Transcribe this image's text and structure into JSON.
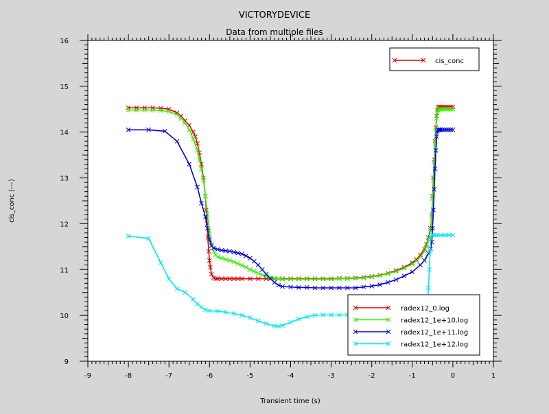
{
  "chart_data": {
    "type": "line",
    "title": "VICTORYDEVICE",
    "subtitle": "Data from multiple files",
    "xlabel": "Transient time (s)",
    "ylabel": "cis_conc (---)",
    "xlim": [
      -9,
      1
    ],
    "ylim": [
      9,
      16
    ],
    "xticks": [
      -9,
      -8,
      -7,
      -6,
      -5,
      -4,
      -3,
      -2,
      -1,
      0,
      1
    ],
    "yticks": [
      9,
      10,
      11,
      12,
      13,
      14,
      15,
      16
    ],
    "grid": false,
    "legend_top": {
      "placement": "top-right",
      "entries": [
        {
          "label": "cis_conc",
          "color": "#e00000"
        }
      ]
    },
    "legend_bottom": {
      "placement": "bottom-right"
    },
    "series": [
      {
        "name": "radex12_0.log",
        "color": "#e00000",
        "x": [
          -8.0,
          -7.8,
          -7.6,
          -7.4,
          -7.2,
          -7.0,
          -6.8,
          -6.7,
          -6.6,
          -6.5,
          -6.4,
          -6.35,
          -6.3,
          -6.25,
          -6.2,
          -6.15,
          -6.1,
          -6.08,
          -6.06,
          -6.04,
          -6.02,
          -6.0,
          -5.98,
          -5.95,
          -5.9,
          -5.85,
          -5.8,
          -5.7,
          -5.6,
          -5.5,
          -5.4,
          -5.3,
          -5.2,
          -5.0,
          -4.8,
          -4.6,
          -4.4,
          -4.2,
          -4.0,
          -3.8,
          -3.6,
          -3.4,
          -3.2,
          -3.0,
          -2.8,
          -2.6,
          -2.4,
          -2.2,
          -2.0,
          -1.8,
          -1.6,
          -1.4,
          -1.2,
          -1.0,
          -0.9,
          -0.8,
          -0.7,
          -0.65,
          -0.6,
          -0.55,
          -0.52,
          -0.5,
          -0.48,
          -0.46,
          -0.44,
          -0.42,
          -0.4,
          -0.38,
          -0.36,
          -0.34,
          -0.32,
          -0.3,
          -0.25,
          -0.2,
          -0.15,
          -0.1,
          -0.05,
          0.0
        ],
        "y": [
          14.53,
          14.53,
          14.53,
          14.53,
          14.52,
          14.5,
          14.42,
          14.35,
          14.25,
          14.15,
          14.0,
          13.9,
          13.75,
          13.55,
          13.3,
          13.0,
          12.6,
          12.3,
          12.0,
          11.7,
          11.4,
          11.2,
          11.05,
          10.9,
          10.82,
          10.8,
          10.8,
          10.8,
          10.8,
          10.8,
          10.8,
          10.8,
          10.8,
          10.8,
          10.8,
          10.8,
          10.8,
          10.8,
          10.8,
          10.8,
          10.8,
          10.8,
          10.8,
          10.8,
          10.81,
          10.81,
          10.82,
          10.83,
          10.85,
          10.88,
          10.92,
          10.98,
          11.05,
          11.15,
          11.22,
          11.32,
          11.45,
          11.55,
          11.7,
          11.9,
          12.2,
          12.6,
          13.0,
          13.4,
          13.8,
          14.1,
          14.35,
          14.48,
          14.53,
          14.55,
          14.55,
          14.55,
          14.55,
          14.55,
          14.55,
          14.55,
          14.55,
          14.55
        ]
      },
      {
        "name": "radex12_1e+10.log",
        "color": "#33ee00",
        "x": [
          -8.0,
          -7.8,
          -7.6,
          -7.4,
          -7.2,
          -7.0,
          -6.8,
          -6.7,
          -6.6,
          -6.5,
          -6.4,
          -6.3,
          -6.25,
          -6.2,
          -6.15,
          -6.1,
          -6.05,
          -6.0,
          -5.95,
          -5.9,
          -5.85,
          -5.8,
          -5.7,
          -5.6,
          -5.5,
          -5.4,
          -5.3,
          -5.2,
          -5.1,
          -5.0,
          -4.9,
          -4.8,
          -4.7,
          -4.6,
          -4.5,
          -4.4,
          -4.3,
          -4.2,
          -4.0,
          -3.8,
          -3.6,
          -3.4,
          -3.2,
          -3.0,
          -2.8,
          -2.6,
          -2.4,
          -2.2,
          -2.0,
          -1.8,
          -1.6,
          -1.4,
          -1.2,
          -1.0,
          -0.9,
          -0.8,
          -0.7,
          -0.65,
          -0.6,
          -0.55,
          -0.52,
          -0.5,
          -0.48,
          -0.46,
          -0.44,
          -0.42,
          -0.4,
          -0.38,
          -0.36,
          -0.34,
          -0.32,
          -0.3,
          -0.25,
          -0.2,
          -0.15,
          -0.1,
          -0.05,
          0.0
        ],
        "y": [
          14.48,
          14.48,
          14.48,
          14.48,
          14.47,
          14.45,
          14.38,
          14.3,
          14.2,
          14.05,
          13.85,
          13.6,
          13.4,
          13.2,
          12.95,
          12.6,
          12.2,
          11.85,
          11.55,
          11.4,
          11.32,
          11.28,
          11.25,
          11.22,
          11.2,
          11.17,
          11.13,
          11.09,
          11.05,
          11.0,
          10.96,
          10.92,
          10.88,
          10.85,
          10.83,
          10.81,
          10.8,
          10.79,
          10.79,
          10.79,
          10.79,
          10.79,
          10.79,
          10.79,
          10.8,
          10.8,
          10.81,
          10.82,
          10.84,
          10.87,
          10.91,
          10.96,
          11.03,
          11.12,
          11.19,
          11.28,
          11.4,
          11.5,
          11.65,
          11.85,
          12.15,
          12.55,
          12.95,
          13.35,
          13.75,
          14.05,
          14.3,
          14.43,
          14.48,
          14.5,
          14.5,
          14.5,
          14.5,
          14.5,
          14.5,
          14.5,
          14.5,
          14.5
        ]
      },
      {
        "name": "radex12_1e+11.log",
        "color": "#0000dd",
        "x": [
          -8.0,
          -7.5,
          -7.1,
          -6.8,
          -6.5,
          -6.3,
          -6.2,
          -6.1,
          -6.05,
          -6.0,
          -5.95,
          -5.9,
          -5.8,
          -5.7,
          -5.6,
          -5.5,
          -5.4,
          -5.3,
          -5.2,
          -5.1,
          -5.0,
          -4.9,
          -4.8,
          -4.7,
          -4.6,
          -4.5,
          -4.4,
          -4.3,
          -4.2,
          -4.0,
          -3.8,
          -3.6,
          -3.4,
          -3.2,
          -3.0,
          -2.8,
          -2.6,
          -2.4,
          -2.2,
          -2.0,
          -1.8,
          -1.6,
          -1.4,
          -1.2,
          -1.0,
          -0.8,
          -0.7,
          -0.6,
          -0.55,
          -0.52,
          -0.5,
          -0.48,
          -0.46,
          -0.44,
          -0.42,
          -0.4,
          -0.38,
          -0.36,
          -0.34,
          -0.32,
          -0.3,
          -0.25,
          -0.2,
          -0.15,
          -0.1,
          -0.05,
          0.0
        ],
        "y": [
          14.05,
          14.05,
          14.02,
          13.8,
          13.3,
          12.8,
          12.45,
          12.15,
          11.9,
          11.65,
          11.52,
          11.47,
          11.44,
          11.42,
          11.41,
          11.4,
          11.38,
          11.36,
          11.34,
          11.3,
          11.25,
          11.18,
          11.1,
          11.0,
          10.9,
          10.8,
          10.72,
          10.66,
          10.63,
          10.62,
          10.61,
          10.61,
          10.6,
          10.6,
          10.6,
          10.6,
          10.6,
          10.6,
          10.62,
          10.64,
          10.67,
          10.72,
          10.78,
          10.86,
          10.95,
          11.1,
          11.2,
          11.35,
          11.45,
          11.6,
          11.9,
          12.3,
          12.75,
          13.2,
          13.6,
          13.9,
          14.02,
          14.05,
          14.05,
          14.05,
          14.05,
          14.05,
          14.05,
          14.05,
          14.05,
          14.05,
          14.05
        ]
      },
      {
        "name": "radex12_1e+12.log",
        "color": "#00e8e8",
        "x": [
          -8.0,
          -7.5,
          -7.2,
          -7.0,
          -6.8,
          -6.6,
          -6.4,
          -6.3,
          -6.2,
          -6.1,
          -6.0,
          -5.8,
          -5.6,
          -5.4,
          -5.2,
          -5.0,
          -4.8,
          -4.6,
          -4.4,
          -4.3,
          -4.2,
          -4.0,
          -3.8,
          -3.6,
          -3.4,
          -3.2,
          -3.0,
          -2.8,
          -2.6,
          -2.4,
          -2.2,
          -2.0,
          -1.8,
          -1.6,
          -1.4,
          -1.2,
          -1.0,
          -0.9,
          -0.8,
          -0.7,
          -0.65,
          -0.62,
          -0.6,
          -0.58,
          -0.56,
          -0.55,
          -0.5,
          -0.45,
          -0.4,
          -0.3,
          -0.2,
          -0.1,
          0.0
        ],
        "y": [
          11.73,
          11.68,
          11.15,
          10.8,
          10.58,
          10.5,
          10.35,
          10.25,
          10.18,
          10.12,
          10.1,
          10.09,
          10.07,
          10.04,
          10.0,
          9.95,
          9.88,
          9.82,
          9.77,
          9.76,
          9.78,
          9.85,
          9.92,
          9.97,
          10.0,
          10.01,
          10.01,
          10.01,
          10.01,
          10.0,
          10.0,
          10.0,
          10.0,
          10.0,
          10.0,
          10.0,
          10.0,
          10.0,
          10.0,
          10.0,
          10.05,
          10.3,
          10.6,
          11.0,
          11.4,
          11.72,
          11.75,
          11.75,
          11.75,
          11.75,
          11.75,
          11.75,
          11.75
        ]
      }
    ]
  }
}
